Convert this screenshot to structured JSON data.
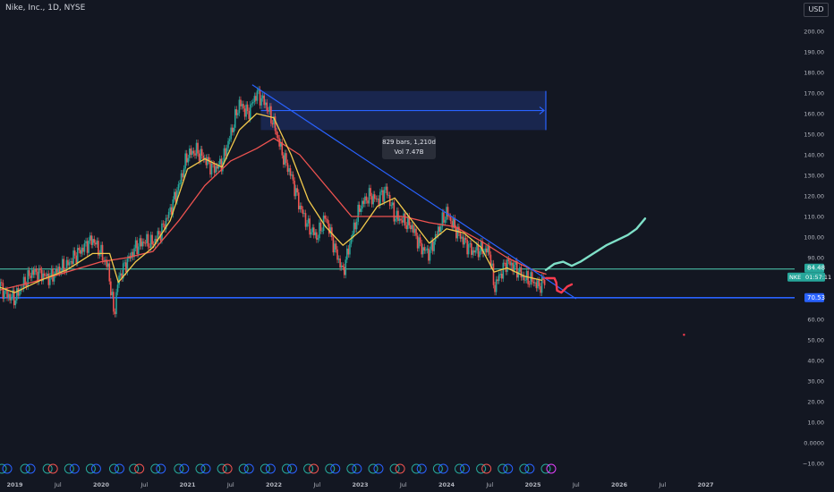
{
  "header": {
    "symbol_title": "Nike, Inc., 1D, NYSE",
    "currency_label": "USD"
  },
  "measure_tooltip": {
    "bars_text": "829 bars, 1,210d",
    "volume_text": "Vol 7.47B"
  },
  "colors": {
    "background": "#131722",
    "candle_up": "#26a69a",
    "candle_down": "#ef5350",
    "ma_fast": "#f2c94c",
    "ma_slow": "#ef5350",
    "trendline": "#2962ff",
    "support_line": "#2962ff",
    "resistance_line": "#4fd1b5",
    "forecast_bull": "#7fe0c8",
    "forecast_bear": "#ff3b4f",
    "measure_box": "#2443a0",
    "price_badge": "#26a69a",
    "support_badge": "#2962ff"
  },
  "chart_data": {
    "type": "line",
    "title": "Nike, Inc., 1D, NYSE",
    "yaxis": {
      "ticks": [
        -10,
        0,
        10,
        20,
        30,
        40,
        50,
        60,
        70,
        80,
        90,
        100,
        110,
        120,
        130,
        140,
        150,
        160,
        170,
        180,
        190,
        200
      ],
      "tick_labels": [
        "−10.00",
        "0.0000",
        "10.00",
        "20.00",
        "30.00",
        "40.00",
        "50.00",
        "60.00",
        "70.00",
        "80.00",
        "90.00",
        "100.00",
        "110.00",
        "120.00",
        "130.00",
        "140.00",
        "150.00",
        "160.00",
        "170.00",
        "180.00",
        "190.00",
        "200.00"
      ]
    },
    "xaxis": {
      "ticks": [
        2019.0,
        2019.5,
        2020.0,
        2020.5,
        2021.0,
        2021.5,
        2022.0,
        2022.5,
        2023.0,
        2023.5,
        2024.0,
        2024.5,
        2025.0,
        2025.5,
        2026.0,
        2026.5,
        2027.0
      ],
      "tick_labels": [
        "2019",
        "Jul",
        "2020",
        "Jul",
        "2021",
        "Jul",
        "2022",
        "Jul",
        "2023",
        "Jul",
        "2024",
        "Jul",
        "2025",
        "Jul",
        "2026",
        "Jul",
        "2027"
      ]
    },
    "series": [
      {
        "kind": "price",
        "x": [
          2018.8,
          2018.9,
          2019.0,
          2019.1,
          2019.2,
          2019.3,
          2019.4,
          2019.5,
          2019.6,
          2019.7,
          2019.8,
          2019.9,
          2020.0,
          2020.08,
          2020.15,
          2020.2,
          2020.3,
          2020.4,
          2020.5,
          2020.6,
          2020.7,
          2020.8,
          2020.9,
          2021.0,
          2021.1,
          2021.2,
          2021.3,
          2021.4,
          2021.5,
          2021.6,
          2021.7,
          2021.8,
          2021.9,
          2022.0,
          2022.1,
          2022.2,
          2022.3,
          2022.4,
          2022.5,
          2022.6,
          2022.7,
          2022.8,
          2022.9,
          2023.0,
          2023.1,
          2023.2,
          2023.3,
          2023.4,
          2023.5,
          2023.6,
          2023.7,
          2023.8,
          2023.9,
          2024.0,
          2024.1,
          2024.2,
          2024.3,
          2024.4,
          2024.5,
          2024.55,
          2024.6,
          2024.7,
          2024.8,
          2024.9,
          2025.0,
          2025.05,
          2025.1,
          2025.15
        ],
        "y": [
          78,
          72,
          70,
          77,
          83,
          82,
          80,
          84,
          86,
          91,
          95,
          99,
          92,
          85,
          62,
          80,
          88,
          95,
          98,
          97,
          103,
          113,
          125,
          140,
          142,
          138,
          133,
          136,
          150,
          165,
          160,
          170,
          165,
          155,
          140,
          130,
          115,
          105,
          100,
          110,
          95,
          83,
          100,
          115,
          120,
          118,
          123,
          110,
          108,
          105,
          95,
          92,
          103,
          112,
          104,
          98,
          93,
          94,
          93,
          75,
          80,
          88,
          85,
          80,
          79,
          76,
          77,
          80
        ]
      },
      {
        "kind": "ma_fast",
        "x": [
          2018.8,
          2019.0,
          2019.3,
          2019.6,
          2019.9,
          2020.1,
          2020.2,
          2020.4,
          2020.6,
          2020.8,
          2021.0,
          2021.2,
          2021.4,
          2021.6,
          2021.8,
          2022.0,
          2022.2,
          2022.4,
          2022.6,
          2022.8,
          2023.0,
          2023.2,
          2023.4,
          2023.6,
          2023.8,
          2024.0,
          2024.2,
          2024.4,
          2024.55,
          2024.7,
          2024.9,
          2025.1
        ],
        "y": [
          76,
          73,
          79,
          84,
          92,
          92,
          78,
          88,
          95,
          108,
          133,
          138,
          134,
          152,
          160,
          158,
          140,
          118,
          105,
          96,
          103,
          115,
          119,
          108,
          97,
          104,
          102,
          95,
          83,
          85,
          81,
          79
        ]
      },
      {
        "kind": "ma_slow",
        "x": [
          2018.8,
          2019.2,
          2019.6,
          2020.0,
          2020.3,
          2020.6,
          2020.9,
          2021.2,
          2021.5,
          2021.8,
          2022.0,
          2022.3,
          2022.6,
          2022.9,
          2023.2,
          2023.5,
          2023.8,
          2024.1,
          2024.4,
          2024.7,
          2025.0,
          2025.15
        ],
        "y": [
          74,
          78,
          83,
          88,
          90,
          93,
          108,
          125,
          137,
          143,
          148,
          140,
          125,
          110,
          110,
          110,
          107,
          105,
          98,
          90,
          84,
          82
        ]
      }
    ],
    "drawings": {
      "downtrend_line": {
        "from": [
          2021.75,
          174
        ],
        "to": [
          2025.5,
          70
        ]
      },
      "support_level": 70.53,
      "resistance_level": 84.48,
      "measure_range": {
        "x0": 2021.85,
        "x1": 2025.15,
        "y0": 152,
        "y1": 171
      },
      "bullish_path": {
        "x": [
          2025.15,
          2025.25,
          2025.35,
          2025.45,
          2025.55,
          2025.7,
          2025.85,
          2026.0,
          2026.1,
          2026.2,
          2026.3
        ],
        "y": [
          84,
          87,
          88,
          86,
          88,
          92,
          96,
          99,
          101,
          104,
          109
        ]
      },
      "bearish_path": {
        "x": [
          2025.15,
          2025.25,
          2025.27,
          2025.28,
          2025.33,
          2025.4,
          2025.45
        ],
        "y": [
          80,
          80,
          78,
          74,
          73,
          76,
          77
        ]
      }
    },
    "price_labels": {
      "current": "84.48",
      "ticker": "NKE",
      "countdown": "01:57:11",
      "support": "70.53"
    }
  }
}
